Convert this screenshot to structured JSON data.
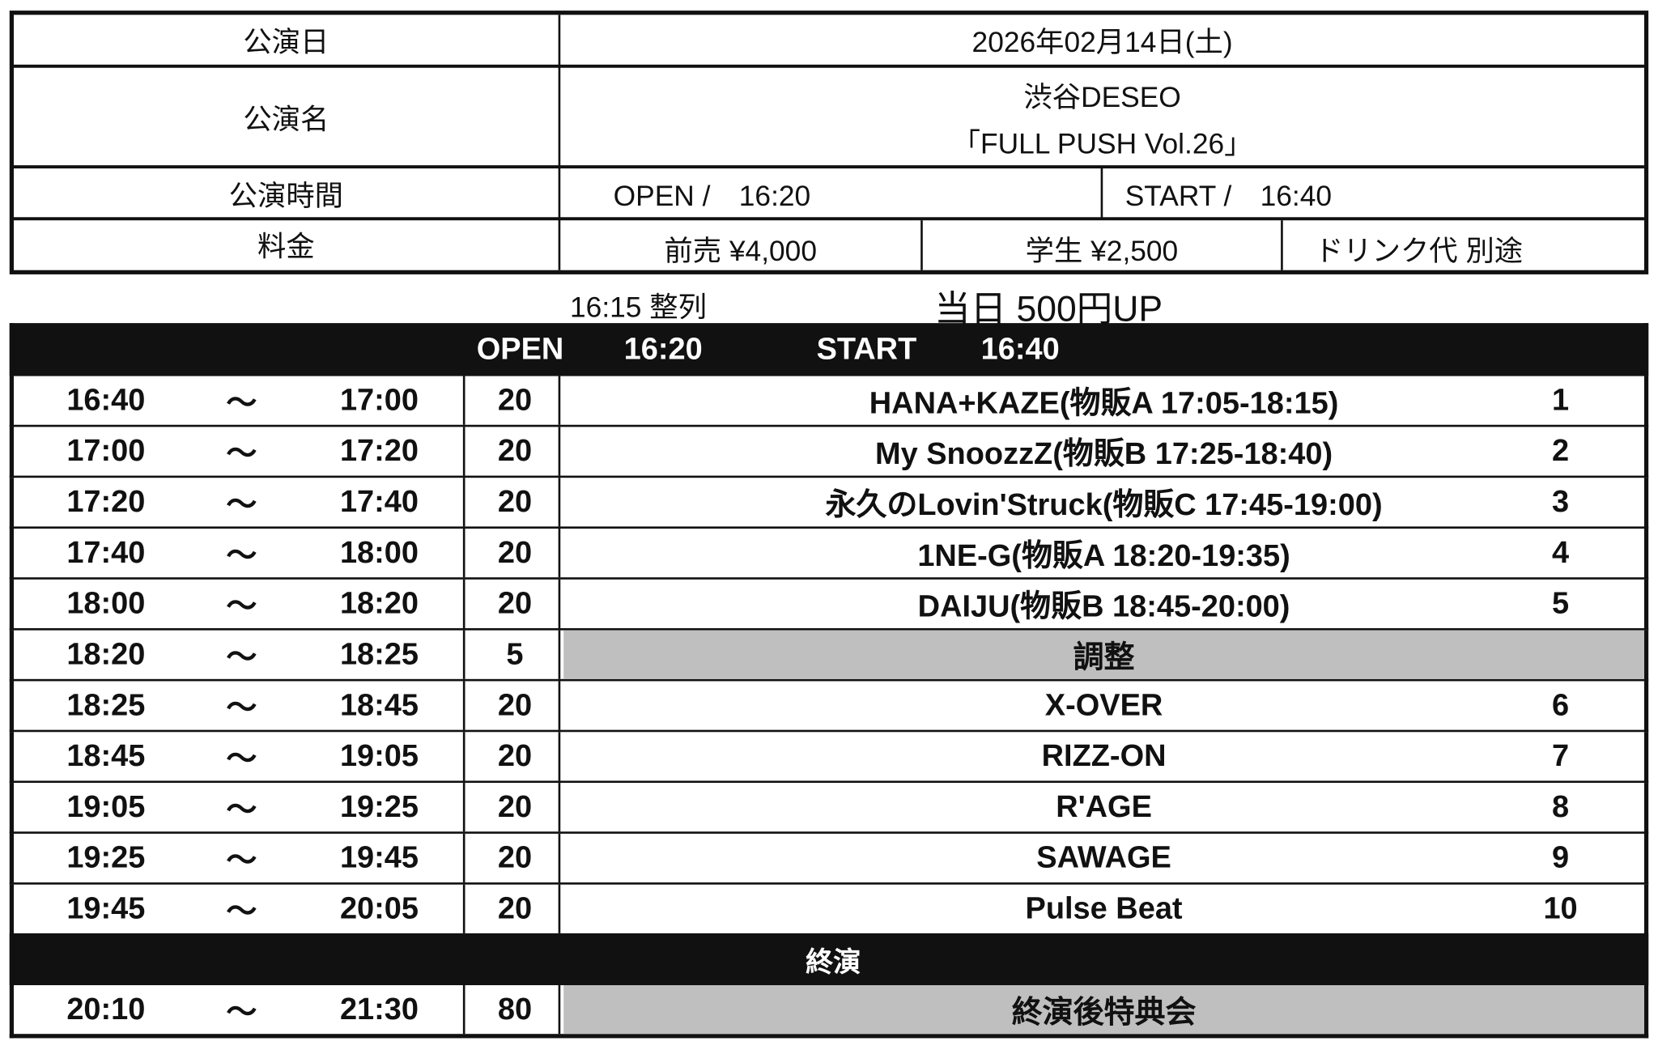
{
  "info": {
    "date_label": "公演日",
    "date_value": "2026年02月14日(土)",
    "name_label": "公演名",
    "venue": "渋谷DESEO",
    "title": "「FULL PUSH Vol.26」",
    "time_label": "公演時間",
    "open": "OPEN /　16:20",
    "start": "START /　16:40",
    "price_label": "料金",
    "advance": "前売 ¥4,000",
    "student": "学生 ¥2,500",
    "drink": "ドリンク代 別途"
  },
  "notes": {
    "line_up": "16:15 整列",
    "door": "当日 500円UP"
  },
  "schedule": {
    "header": {
      "open_label": "OPEN",
      "open_time": "16:20",
      "start_label": "START",
      "start_time": "16:40"
    },
    "tilde": "〜",
    "rows": [
      {
        "start": "16:40",
        "end": "17:00",
        "min": "20",
        "name": "HANA+KAZE(物販A 17:05-18:15)",
        "no": "1"
      },
      {
        "start": "17:00",
        "end": "17:20",
        "min": "20",
        "name": "My SnoozzZ(物販B 17:25-18:40)",
        "no": "2"
      },
      {
        "start": "17:20",
        "end": "17:40",
        "min": "20",
        "name": "永久のLovin'Struck(物販C 17:45-19:00)",
        "no": "3"
      },
      {
        "start": "17:40",
        "end": "18:00",
        "min": "20",
        "name": "1NE-G(物販A 18:20-19:35)",
        "no": "4"
      },
      {
        "start": "18:00",
        "end": "18:20",
        "min": "20",
        "name": "DAIJU(物販B 18:45-20:00)",
        "no": "5"
      },
      {
        "start": "18:20",
        "end": "18:25",
        "min": "5",
        "name": "調整",
        "no": "",
        "gray": true
      },
      {
        "start": "18:25",
        "end": "18:45",
        "min": "20",
        "name": "X-OVER",
        "no": "6"
      },
      {
        "start": "18:45",
        "end": "19:05",
        "min": "20",
        "name": "RIZZ-ON",
        "no": "7"
      },
      {
        "start": "19:05",
        "end": "19:25",
        "min": "20",
        "name": "R'AGE",
        "no": "8"
      },
      {
        "start": "19:25",
        "end": "19:45",
        "min": "20",
        "name": "SAWAGE",
        "no": "9"
      },
      {
        "start": "19:45",
        "end": "20:05",
        "min": "20",
        "name": "Pulse Beat",
        "no": "10"
      }
    ],
    "end_label": "終演",
    "after": {
      "start": "20:10",
      "end": "21:30",
      "min": "80",
      "name": "終演後特典会"
    }
  },
  "colors": {
    "black": "#111111",
    "gray": "#bfbfbf"
  }
}
